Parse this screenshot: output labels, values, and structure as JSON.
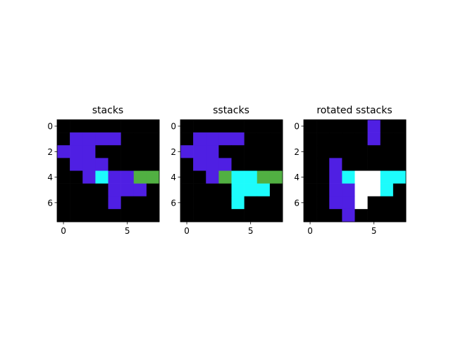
{
  "chart_data": [
    {
      "type": "heatmap",
      "title": "stacks",
      "x_ticks": [
        "0",
        "5"
      ],
      "y_ticks": [
        "0",
        "2",
        "4",
        "6"
      ],
      "xlim": [
        -0.5,
        7.5
      ],
      "ylim": [
        7.5,
        -0.5
      ],
      "grid": [
        [
          "k",
          "k",
          "k",
          "k",
          "k",
          "k",
          "k",
          "k"
        ],
        [
          "k",
          "P",
          "P",
          "P",
          "P",
          "k",
          "k",
          "k"
        ],
        [
          "P",
          "P",
          "P",
          "k",
          "k",
          "k",
          "k",
          "k"
        ],
        [
          "k",
          "P",
          "P",
          "P",
          "k",
          "k",
          "k",
          "k"
        ],
        [
          "k",
          "k",
          "P",
          "C",
          "P",
          "P",
          "G",
          "G"
        ],
        [
          "k",
          "k",
          "k",
          "k",
          "P",
          "P",
          "P",
          "k"
        ],
        [
          "k",
          "k",
          "k",
          "k",
          "P",
          "k",
          "k",
          "k"
        ],
        [
          "k",
          "k",
          "k",
          "k",
          "k",
          "k",
          "k",
          "k"
        ]
      ]
    },
    {
      "type": "heatmap",
      "title": "sstacks",
      "x_ticks": [
        "0",
        "5"
      ],
      "y_ticks": [
        "0",
        "2",
        "4",
        "6"
      ],
      "xlim": [
        -0.5,
        7.5
      ],
      "ylim": [
        7.5,
        -0.5
      ],
      "grid": [
        [
          "k",
          "k",
          "k",
          "k",
          "k",
          "k",
          "k",
          "k"
        ],
        [
          "k",
          "P",
          "P",
          "P",
          "P",
          "k",
          "k",
          "k"
        ],
        [
          "P",
          "P",
          "P",
          "k",
          "k",
          "k",
          "k",
          "k"
        ],
        [
          "k",
          "P",
          "P",
          "P",
          "k",
          "k",
          "k",
          "k"
        ],
        [
          "k",
          "k",
          "P",
          "G",
          "C",
          "C",
          "G",
          "G"
        ],
        [
          "k",
          "k",
          "k",
          "k",
          "C",
          "C",
          "C",
          "k"
        ],
        [
          "k",
          "k",
          "k",
          "k",
          "C",
          "k",
          "k",
          "k"
        ],
        [
          "k",
          "k",
          "k",
          "k",
          "k",
          "k",
          "k",
          "k"
        ]
      ]
    },
    {
      "type": "heatmap",
      "title": "rotated sstacks",
      "x_ticks": [
        "0",
        "5"
      ],
      "y_ticks": [
        "0",
        "2",
        "4",
        "6"
      ],
      "xlim": [
        -0.5,
        7.5
      ],
      "ylim": [
        7.5,
        -0.5
      ],
      "grid": [
        [
          "k",
          "k",
          "k",
          "k",
          "k",
          "P",
          "k",
          "k"
        ],
        [
          "k",
          "k",
          "k",
          "k",
          "k",
          "P",
          "k",
          "k"
        ],
        [
          "k",
          "k",
          "k",
          "k",
          "k",
          "k",
          "k",
          "k"
        ],
        [
          "k",
          "k",
          "P",
          "k",
          "k",
          "k",
          "k",
          "k"
        ],
        [
          "k",
          "k",
          "P",
          "C",
          "W",
          "W",
          "C",
          "C"
        ],
        [
          "k",
          "k",
          "P",
          "P",
          "W",
          "W",
          "C",
          "k"
        ],
        [
          "k",
          "k",
          "P",
          "P",
          "W",
          "k",
          "k",
          "k"
        ],
        [
          "k",
          "k",
          "k",
          "P",
          "k",
          "k",
          "k",
          "k"
        ]
      ]
    }
  ],
  "palette": {
    "k": "#000000",
    "P": "#4f1fe3",
    "C": "#1dfcfc",
    "G": "#51b042",
    "W": "#ffffff"
  },
  "axis_color": "#000000",
  "background": "#ffffff"
}
